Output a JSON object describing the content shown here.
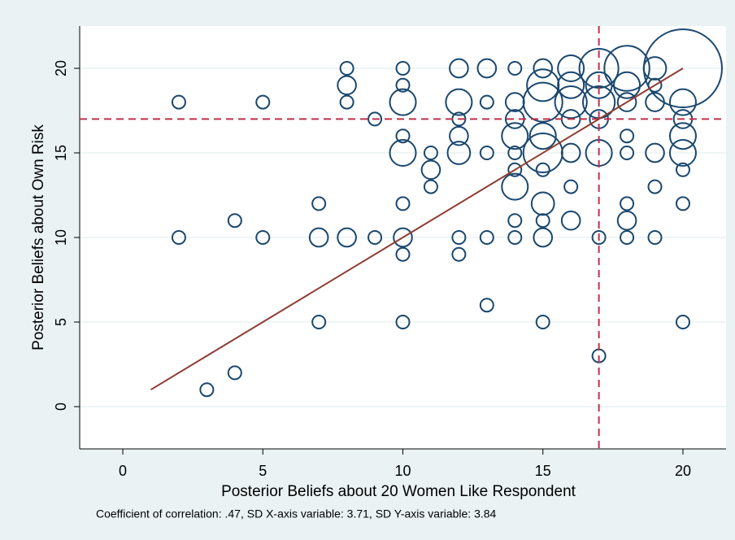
{
  "chart_data": {
    "type": "bubble",
    "x_label": "Posterior Beliefs about 20 Women Like Respondent",
    "y_label": "Posterior Beliefs about Own Risk",
    "note": "Coefficient of correlation: .47, SD X-axis variable: 3.71, SD Y-axis variable: 3.84",
    "x": [
      8,
      10,
      12,
      13,
      14,
      15,
      16,
      17,
      18,
      19,
      20,
      8,
      10,
      15,
      16,
      17,
      18,
      19,
      2,
      5,
      8,
      10,
      12,
      13,
      14,
      15,
      16,
      17,
      18,
      19,
      20,
      9,
      12,
      14,
      16,
      17,
      20,
      10,
      12,
      14,
      15,
      18,
      20,
      10,
      11,
      12,
      13,
      14,
      15,
      16,
      17,
      18,
      19,
      20,
      11,
      14,
      15,
      20,
      11,
      14,
      16,
      19,
      7,
      10,
      15,
      18,
      20,
      4,
      14,
      15,
      16,
      18,
      2,
      5,
      7,
      8,
      9,
      10,
      12,
      13,
      14,
      15,
      17,
      18,
      19,
      10,
      12,
      13,
      7,
      10,
      15,
      20,
      17,
      4,
      3
    ],
    "y": [
      20,
      20,
      20,
      20,
      20,
      20,
      20,
      20,
      20,
      20,
      20,
      19,
      19,
      19,
      19,
      19,
      19,
      19,
      18,
      18,
      18,
      18,
      18,
      18,
      18,
      18,
      18,
      18,
      18,
      18,
      18,
      17,
      17,
      17,
      17,
      17,
      17,
      16,
      16,
      16,
      16,
      16,
      16,
      15,
      15,
      15,
      15,
      15,
      15,
      15,
      15,
      15,
      15,
      15,
      14,
      14,
      14,
      14,
      13,
      13,
      13,
      13,
      12,
      12,
      12,
      12,
      12,
      11,
      11,
      11,
      11,
      11,
      10,
      10,
      10,
      10,
      10,
      10,
      10,
      10,
      10,
      10,
      10,
      10,
      10,
      9,
      9,
      6,
      5,
      5,
      5,
      5,
      3,
      2,
      1
    ],
    "sizes": [
      1,
      1,
      2,
      2,
      1,
      2,
      4,
      9,
      12,
      3,
      36,
      2,
      1,
      6,
      4,
      4,
      4,
      1,
      1,
      1,
      1,
      4,
      4,
      1,
      2,
      9,
      6,
      6,
      2,
      2,
      4,
      1,
      1,
      2,
      2,
      2,
      2,
      1,
      2,
      4,
      4,
      1,
      4,
      4,
      1,
      3,
      1,
      1,
      9,
      2,
      4,
      1,
      2,
      4,
      2,
      1,
      1,
      1,
      1,
      4,
      1,
      1,
      1,
      1,
      3,
      1,
      1,
      1,
      1,
      1,
      2,
      2,
      1,
      1,
      2,
      2,
      1,
      2,
      1,
      1,
      1,
      2,
      1,
      1,
      1,
      1,
      1,
      1,
      1,
      1,
      1,
      1,
      1,
      1,
      1
    ],
    "color": "#1a476f",
    "fit_line": {
      "x": [
        1,
        20
      ],
      "y": [
        1,
        20
      ],
      "color": "#903c32"
    },
    "xline": 17,
    "yline": 17,
    "ref_color": "#c0304a",
    "xlim": [
      -1.54,
      21.54
    ],
    "ylim": [
      -2.5,
      22.5
    ],
    "xticks": [
      0,
      5,
      10,
      15,
      20
    ],
    "yticks": [
      0,
      5,
      10,
      15,
      20
    ],
    "grid": true
  }
}
